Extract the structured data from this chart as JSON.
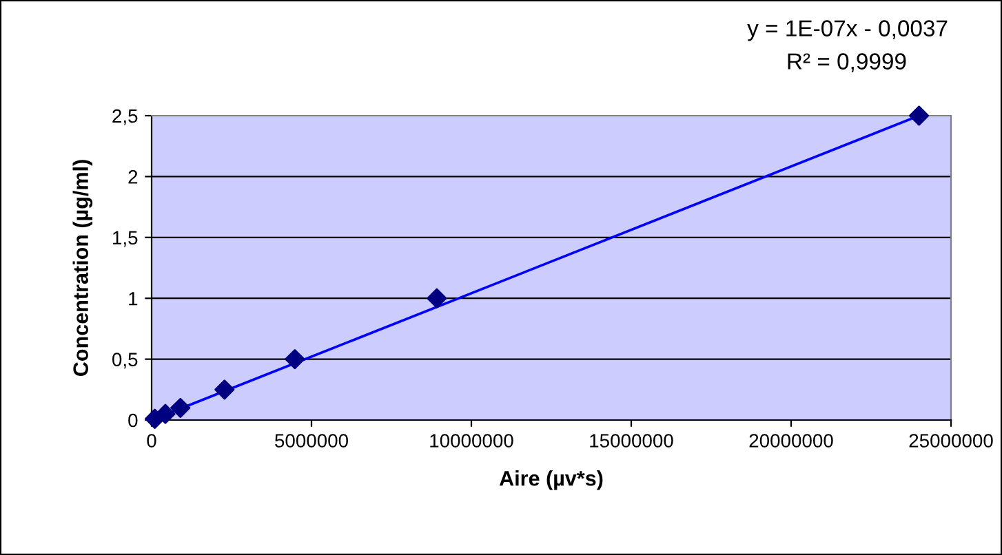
{
  "chart_data": {
    "type": "scatter",
    "xlabel": "Aire (µv*s)",
    "ylabel": "Concentration (µg/ml)",
    "annotations": [
      "y = 1E-07x - 0,0037",
      "R² = 0,9999"
    ],
    "xlim": [
      0,
      25000000
    ],
    "xticks": [
      0,
      5000000,
      10000000,
      15000000,
      20000000,
      25000000
    ],
    "ylim": [
      0,
      2.5
    ],
    "yticks": [
      0,
      {
        "value": 0.5,
        "label": "0,5"
      },
      1,
      {
        "value": 1.5,
        "label": "1,5"
      },
      2,
      {
        "value": 2.5,
        "label": "2,5"
      }
    ],
    "grid": "y",
    "series": [
      {
        "marker": "diamond",
        "color": "#000080",
        "x": [
          100000,
          430000,
          900000,
          2280000,
          4480000,
          8920000,
          24000000
        ],
        "values": [
          0.01,
          0.05,
          0.1,
          0.25,
          0.5,
          1,
          2.5
        ]
      },
      {
        "type": "line",
        "color": "#0000ff",
        "x": [
          0,
          24000000
        ],
        "values": [
          0,
          2.5
        ]
      }
    ]
  }
}
